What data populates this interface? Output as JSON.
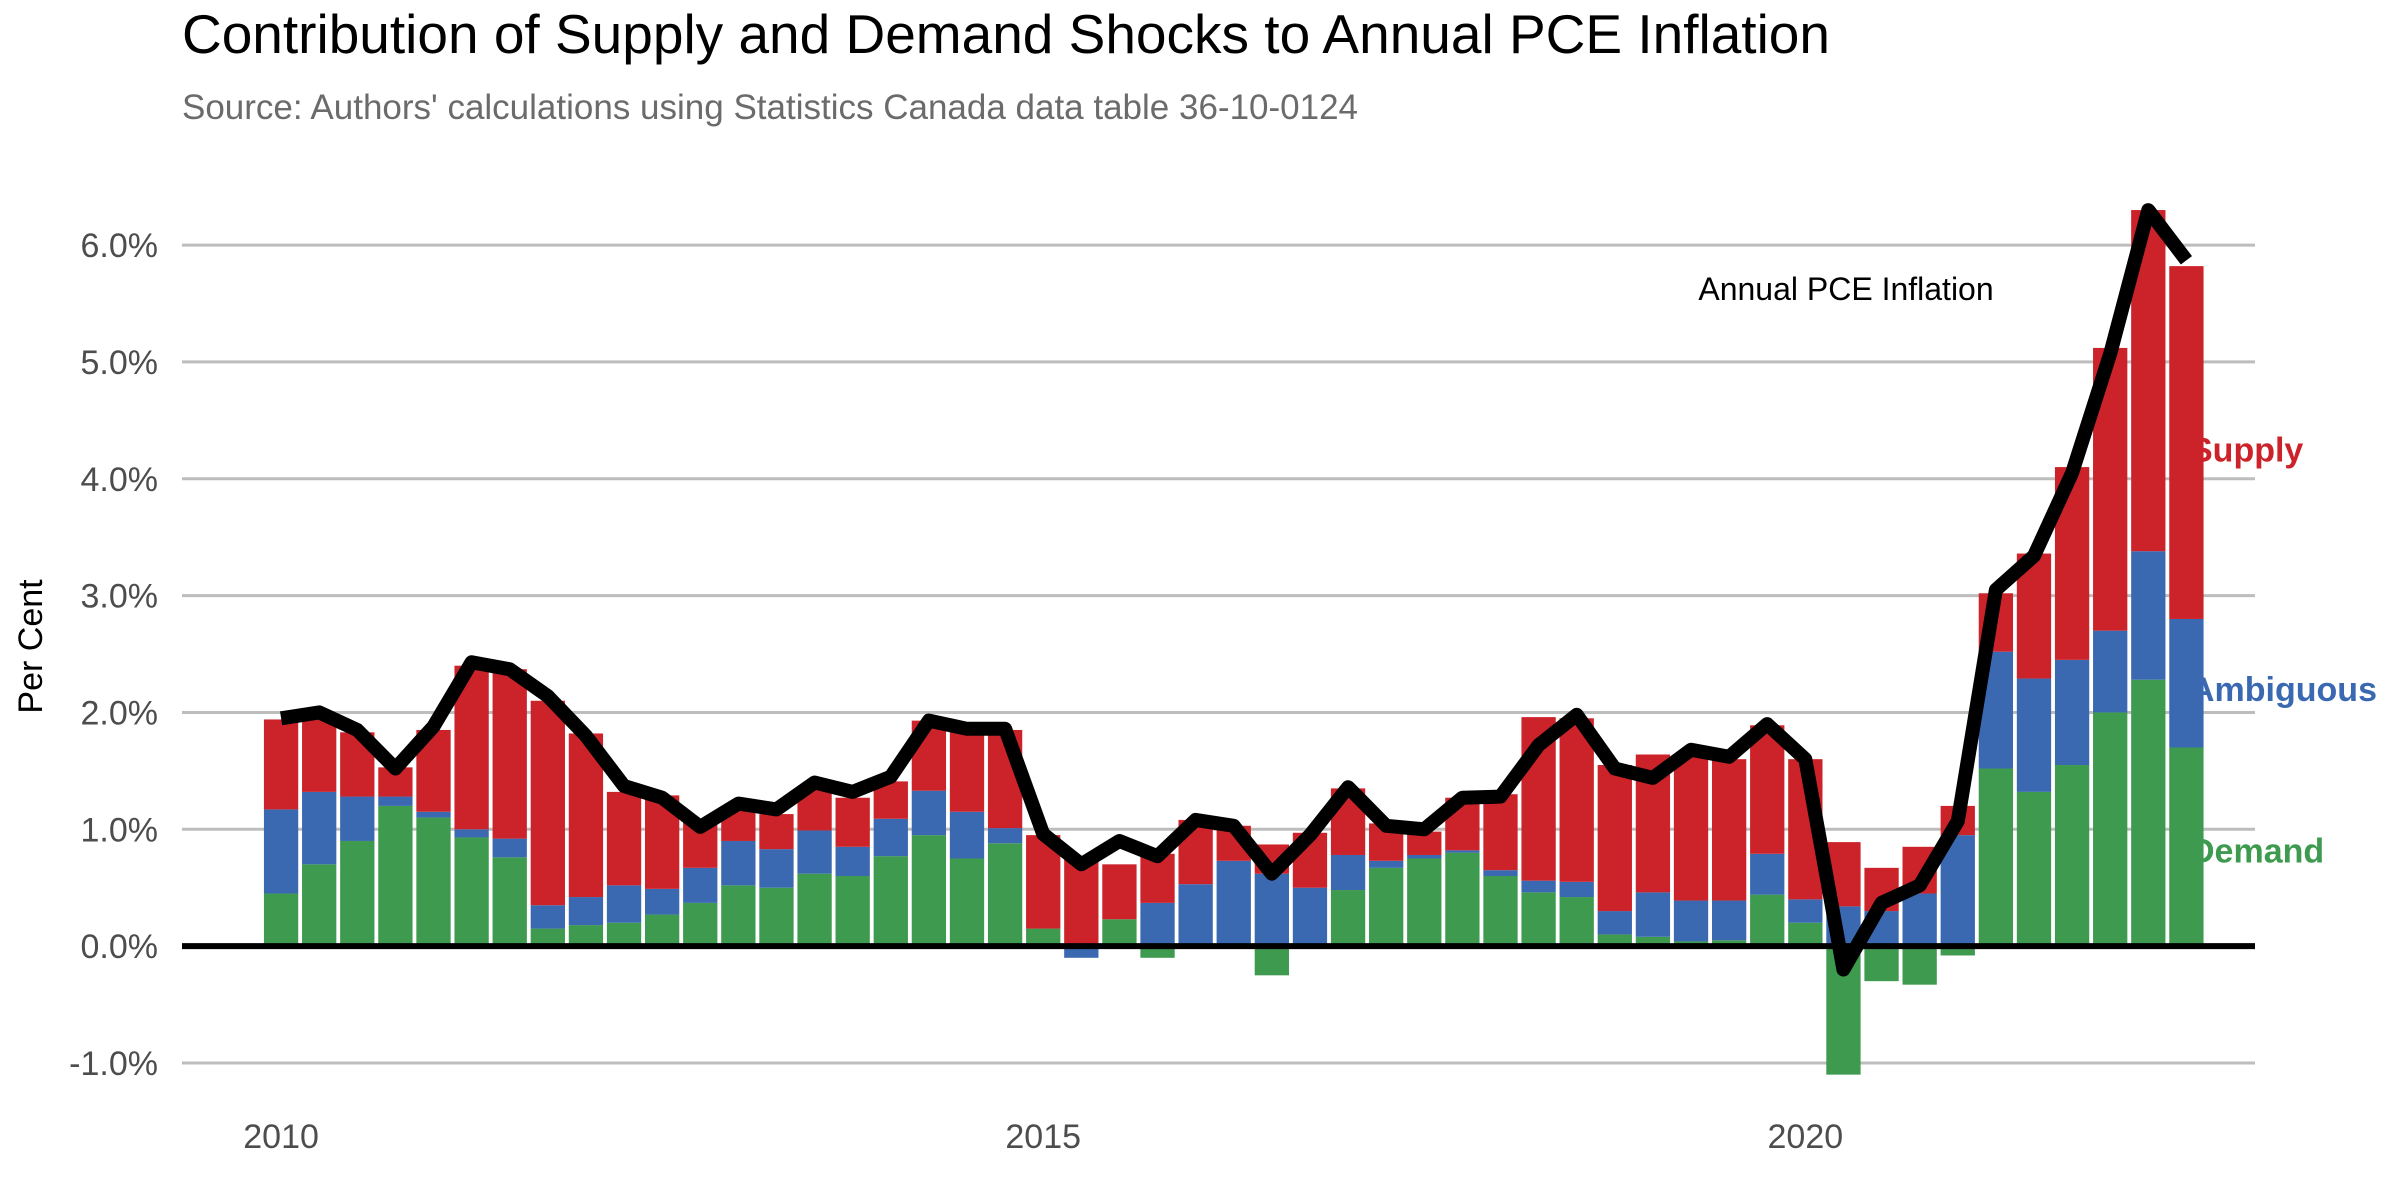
{
  "chart_data": {
    "type": "bar",
    "stacked": true,
    "title": "Contribution of Supply and Demand Shocks to Annual PCE Inflation",
    "subtitle": "Source: Authors' calculations using Statistics Canada data table 36-10-0124",
    "ylabel": "Per Cent",
    "xlabel": "",
    "ylim": [
      -1.3,
      6.6
    ],
    "xlim": [
      2009.35,
      2022.95
    ],
    "grid": true,
    "yticks": [
      -1.0,
      0.0,
      1.0,
      2.0,
      3.0,
      4.0,
      5.0,
      6.0
    ],
    "ytick_labels": [
      "-1.0%",
      "0.0%",
      "1.0%",
      "2.0%",
      "3.0%",
      "4.0%",
      "5.0%",
      "6.0%"
    ],
    "xticks": [
      2010,
      2015,
      2020
    ],
    "xtick_labels": [
      "2010",
      "2015",
      "2020"
    ],
    "x": [
      2010.0,
      2010.25,
      2010.5,
      2010.75,
      2011.0,
      2011.25,
      2011.5,
      2011.75,
      2012.0,
      2012.25,
      2012.5,
      2012.75,
      2013.0,
      2013.25,
      2013.5,
      2013.75,
      2014.0,
      2014.25,
      2014.5,
      2014.75,
      2015.0,
      2015.25,
      2015.5,
      2015.75,
      2016.0,
      2016.25,
      2016.5,
      2016.75,
      2017.0,
      2017.25,
      2017.5,
      2017.75,
      2018.0,
      2018.25,
      2018.5,
      2018.75,
      2019.0,
      2019.25,
      2019.5,
      2019.75,
      2020.0,
      2020.25,
      2020.5,
      2020.75,
      2021.0,
      2021.25,
      2021.5,
      2021.75,
      2022.0,
      2022.25,
      2022.5
    ],
    "series": [
      {
        "name": "Demand",
        "color": "#3e9a4e",
        "values": [
          0.45,
          0.7,
          0.9,
          1.2,
          1.1,
          0.93,
          0.76,
          0.15,
          0.18,
          0.2,
          0.27,
          0.37,
          0.52,
          0.5,
          0.62,
          0.6,
          0.77,
          0.95,
          0.75,
          0.88,
          0.15,
          0.0,
          0.23,
          -0.1,
          0.0,
          0.0,
          -0.25,
          0.0,
          0.48,
          0.67,
          0.75,
          0.8,
          0.6,
          0.46,
          0.42,
          0.1,
          0.08,
          0.04,
          0.05,
          0.44,
          0.2,
          -1.1,
          -0.3,
          -0.33,
          -0.08,
          1.52,
          1.32,
          1.55,
          2.0,
          2.28,
          1.7
        ]
      },
      {
        "name": "Ambiguous",
        "color": "#3a69b1",
        "values": [
          0.72,
          0.62,
          0.38,
          0.08,
          0.05,
          0.07,
          0.16,
          0.2,
          0.24,
          0.32,
          0.22,
          0.3,
          0.38,
          0.33,
          0.37,
          0.25,
          0.32,
          0.38,
          0.4,
          0.13,
          0.0,
          -0.1,
          0.0,
          0.37,
          0.53,
          0.73,
          0.62,
          0.5,
          0.3,
          0.06,
          0.03,
          0.02,
          0.05,
          0.1,
          0.13,
          0.2,
          0.38,
          0.35,
          0.34,
          0.35,
          0.2,
          0.34,
          0.3,
          0.45,
          0.95,
          1.0,
          0.97,
          0.9,
          0.7,
          1.1,
          1.1
        ]
      },
      {
        "name": "Supply",
        "color": "#cc2229",
        "values": [
          0.77,
          0.67,
          0.55,
          0.25,
          0.7,
          1.4,
          1.45,
          1.75,
          1.4,
          0.8,
          0.8,
          0.4,
          0.3,
          0.3,
          0.38,
          0.42,
          0.32,
          0.6,
          0.7,
          0.84,
          0.8,
          0.77,
          0.47,
          0.42,
          0.55,
          0.3,
          0.25,
          0.47,
          0.57,
          0.32,
          0.2,
          0.45,
          0.65,
          1.4,
          1.4,
          1.25,
          1.18,
          1.25,
          1.21,
          1.1,
          1.2,
          0.55,
          0.37,
          0.4,
          0.25,
          0.5,
          1.07,
          1.65,
          2.42,
          2.92,
          3.02
        ]
      }
    ],
    "line": {
      "name": "Annual PCE Inflation",
      "color": "#000000",
      "values": [
        1.95,
        2.0,
        1.85,
        1.52,
        1.88,
        2.43,
        2.37,
        2.14,
        1.8,
        1.37,
        1.27,
        1.02,
        1.22,
        1.17,
        1.4,
        1.32,
        1.45,
        1.93,
        1.86,
        1.86,
        0.96,
        0.7,
        0.9,
        0.77,
        1.08,
        1.03,
        0.62,
        0.95,
        1.36,
        1.03,
        1.0,
        1.27,
        1.28,
        1.72,
        1.98,
        1.52,
        1.44,
        1.68,
        1.62,
        1.9,
        1.6,
        -0.2,
        0.37,
        0.52,
        1.07,
        3.05,
        3.34,
        4.05,
        5.07,
        6.3,
        5.87
      ]
    },
    "annotations": [
      "Annual PCE Inflation"
    ],
    "legend": "right, inline labels",
    "legend_entries": [
      {
        "label": "Supply",
        "color": "#cc2229",
        "anchor": 4.25
      },
      {
        "label": "Ambiguous",
        "color": "#3a69b1",
        "anchor": 2.2
      },
      {
        "label": "Demand",
        "color": "#3e9a4e",
        "anchor": 0.82
      }
    ]
  }
}
